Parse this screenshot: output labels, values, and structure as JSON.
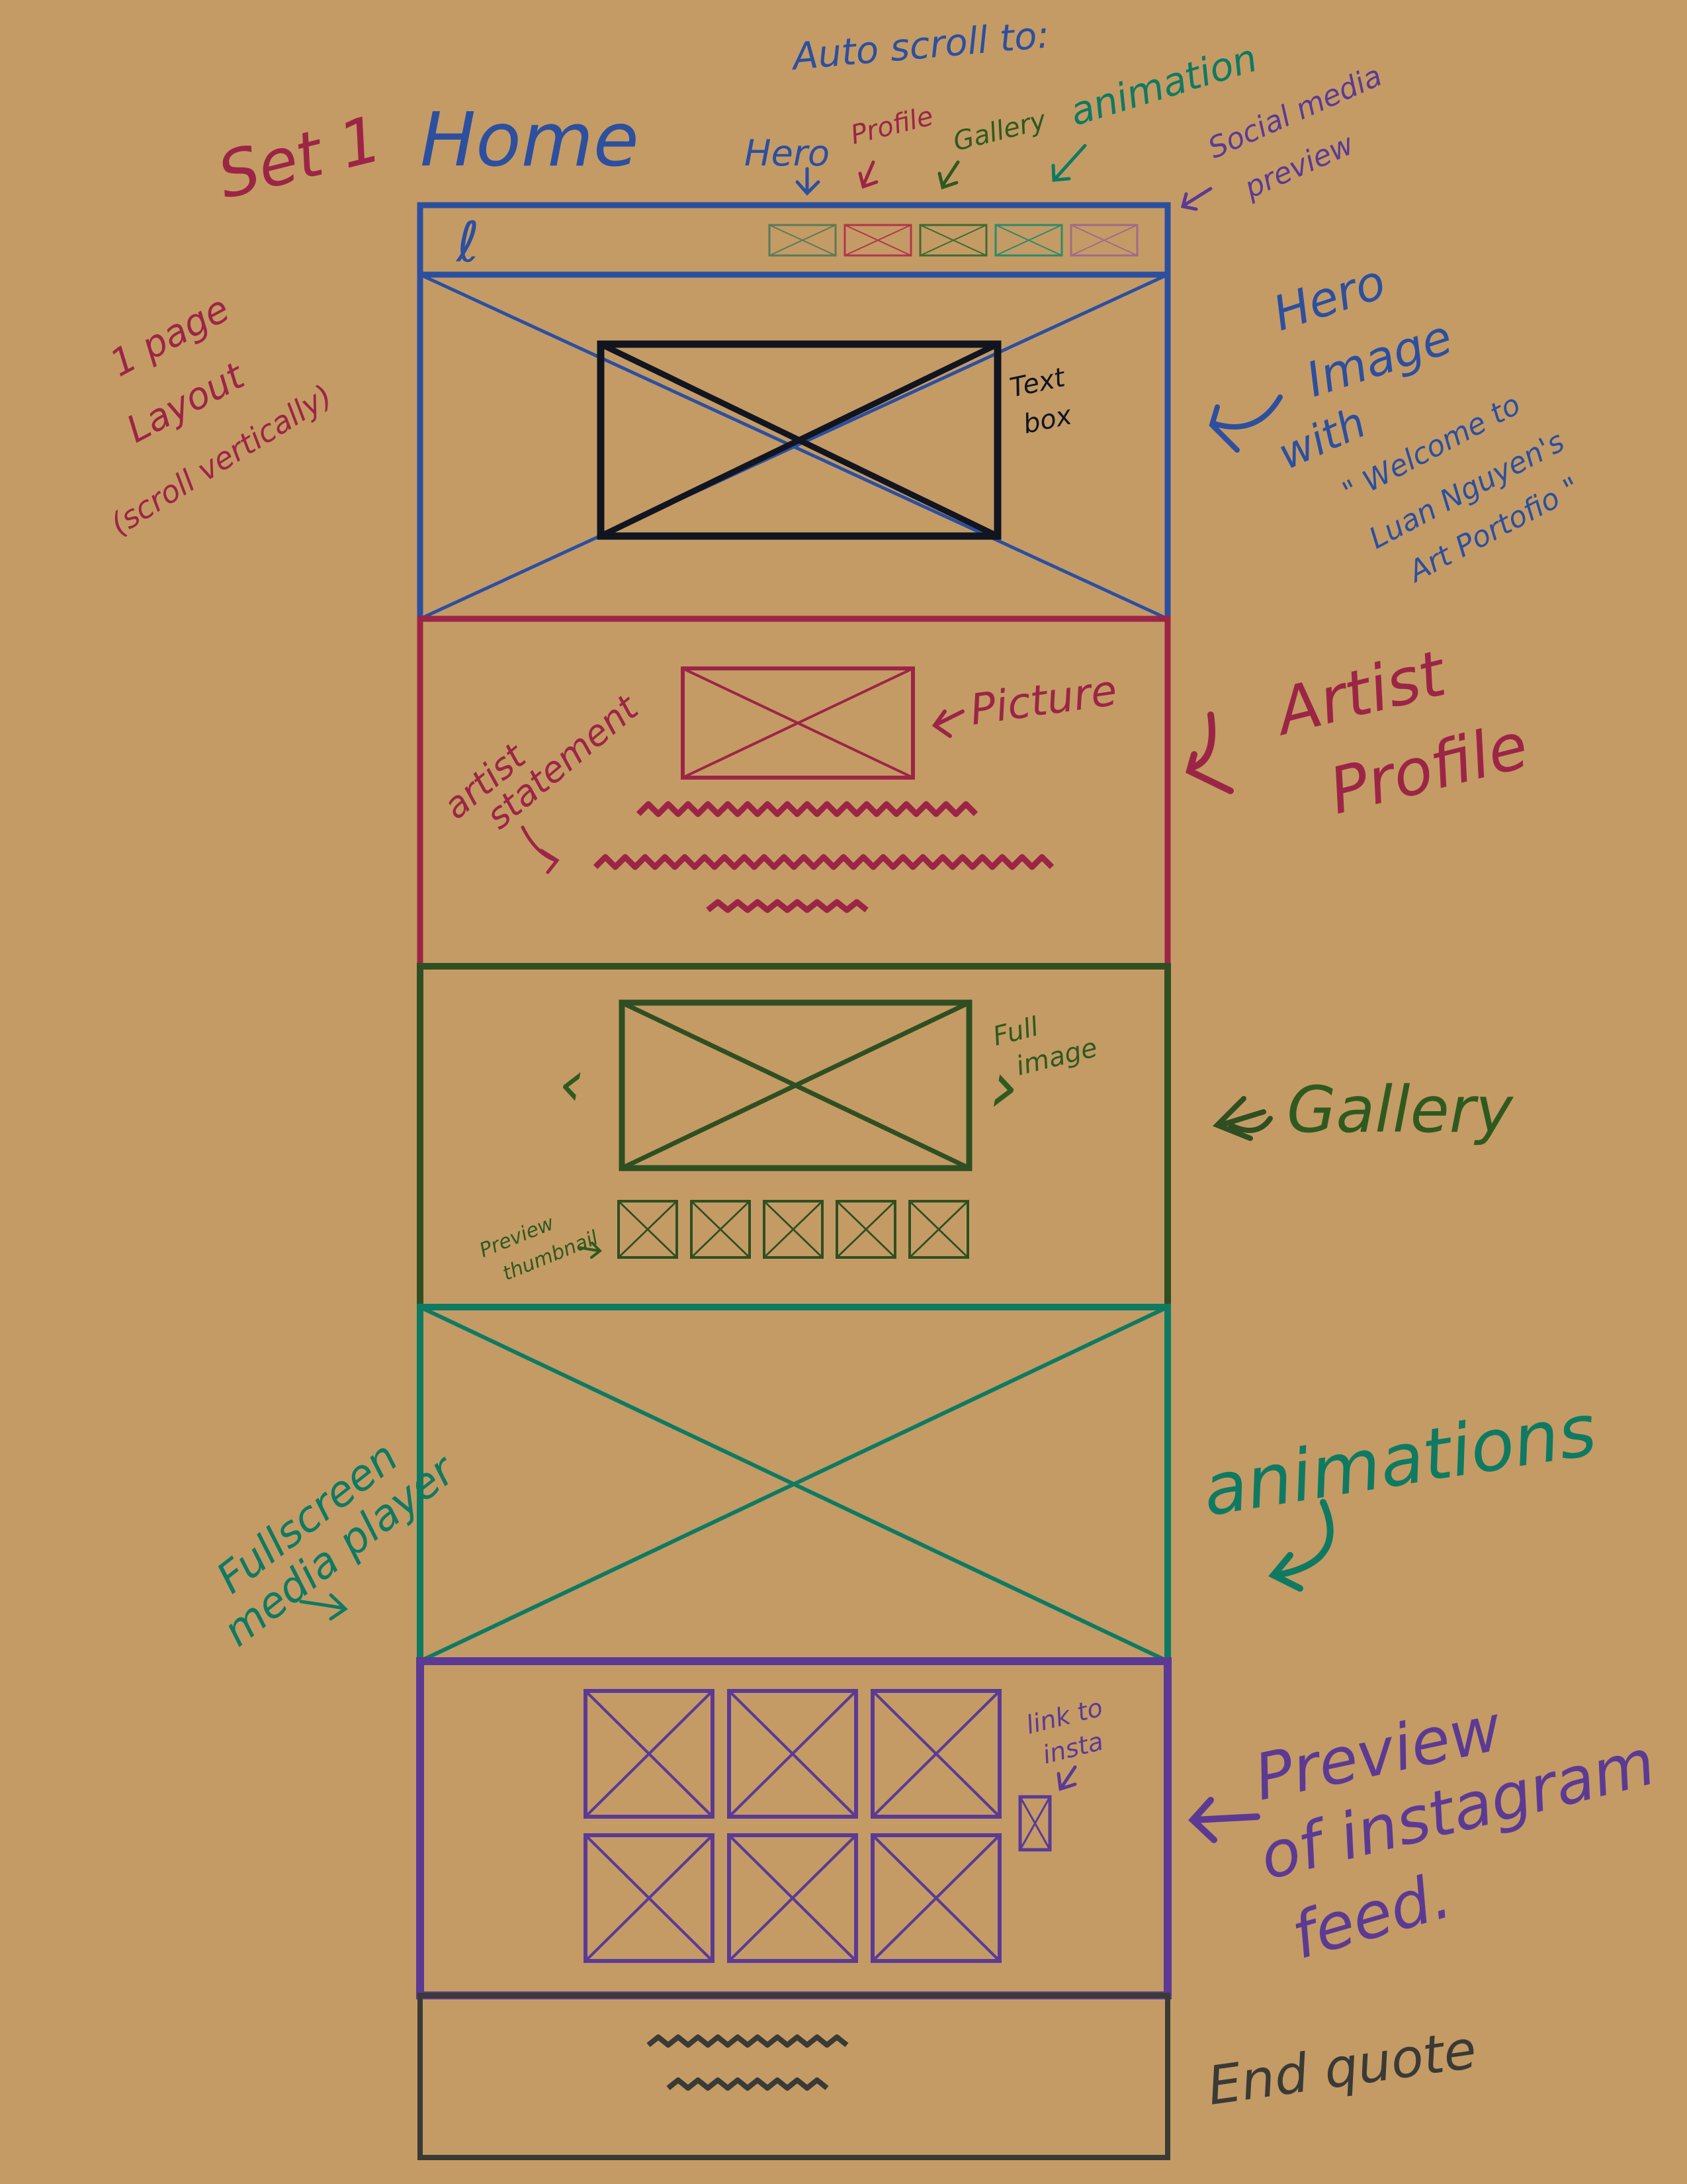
{
  "page": {
    "set_label": "Set 1",
    "page_title": "Home",
    "layout_note": [
      "1 page",
      "Layout",
      "(scroll vertically)"
    ]
  },
  "nav": {
    "logo_glyph": "ℓ",
    "auto_scroll_label": "Auto scroll to:",
    "targets": [
      {
        "label": "Hero",
        "color": "#2c4fa0"
      },
      {
        "label": "Profile",
        "color": "#9c2546"
      },
      {
        "label": "Gallery",
        "color": "#2f5a1f"
      },
      {
        "label": "animation",
        "color": "#0f7a62"
      }
    ],
    "social_label": [
      "Social media",
      "preview"
    ]
  },
  "hero": {
    "side_label": [
      "Hero",
      "Image",
      "with"
    ],
    "quote": [
      "\" Welcome to",
      "Luan Nguyen's",
      "Art Portofio \""
    ],
    "textbox_note": [
      "Text",
      "box"
    ]
  },
  "profile": {
    "side_label": [
      "Artist",
      "Profile"
    ],
    "picture_note": "Picture",
    "statement_note": [
      "artist",
      "statement"
    ]
  },
  "gallery": {
    "side_label": "Gallery",
    "full_image_note": [
      "Full",
      "image"
    ],
    "thumbnail_note": [
      "Preview",
      "thumbnail"
    ],
    "prev_glyph": "‹",
    "next_glyph": "›",
    "thumbnail_count": 5
  },
  "animation": {
    "side_label": "animations",
    "player_note": [
      "Fullscreen",
      "media player"
    ]
  },
  "instagram": {
    "side_label": [
      "Preview",
      "of instagram",
      "feed."
    ],
    "link_note": [
      "link to",
      "insta"
    ],
    "tile_count": 6
  },
  "footer": {
    "side_label": "End quote"
  },
  "colors": {
    "background": "#c49b65",
    "nav_hero": "#2c4fa0",
    "profile": "#9c2546",
    "gallery": "#2f4f22",
    "animation": "#0f7a62",
    "instagram": "#5c3a94",
    "footer": "#3a3a36",
    "textbox": "#111520"
  }
}
